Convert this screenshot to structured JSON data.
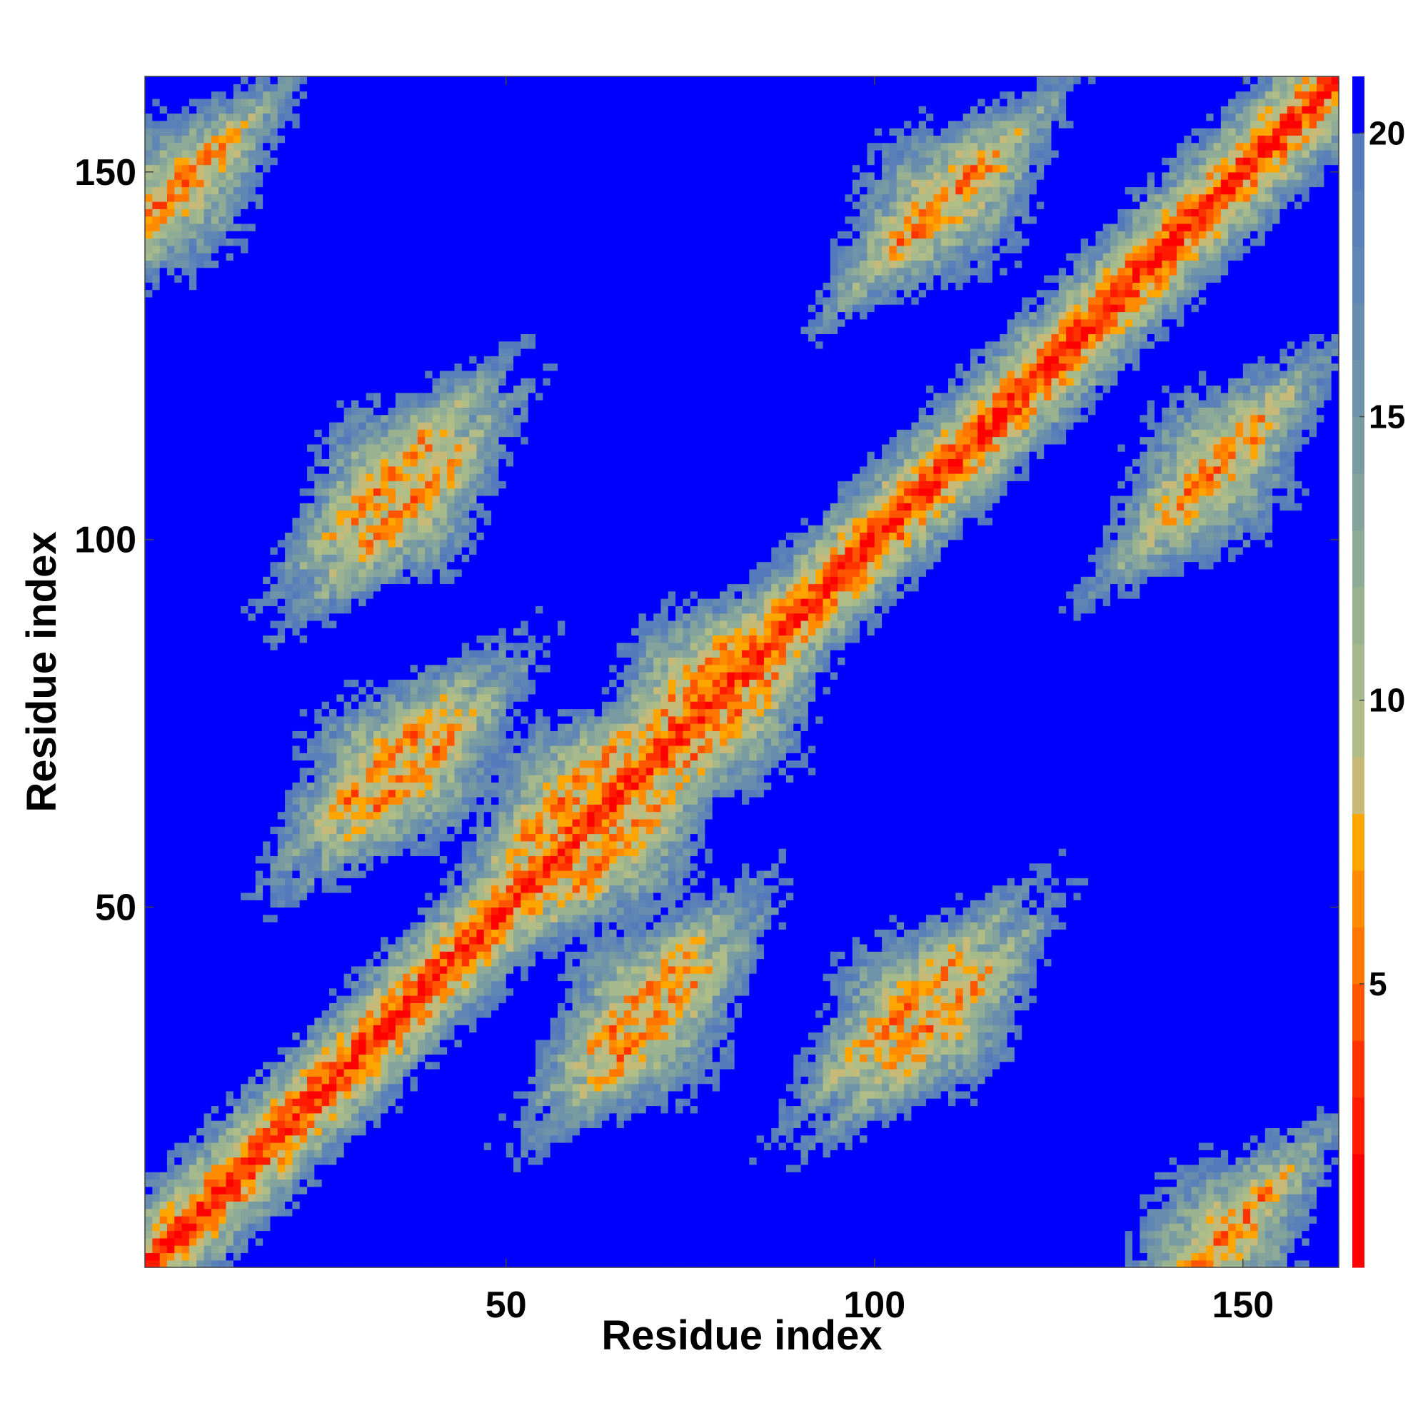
{
  "chart_data": {
    "type": "heatmap",
    "title": "",
    "xlabel": "Residue index",
    "ylabel": "Residue index",
    "n_residues": 162,
    "xlim": [
      1,
      163
    ],
    "ylim": [
      1,
      163
    ],
    "x_ticks": [
      50,
      100,
      150
    ],
    "y_ticks": [
      50,
      100,
      150
    ],
    "x_tick_labels": [
      "50",
      "100",
      "150"
    ],
    "y_tick_labels": [
      "50",
      "100",
      "150"
    ],
    "colorbar": {
      "range": [
        0,
        21
      ],
      "ticks": [
        5,
        10,
        15,
        20
      ],
      "tick_labels": [
        "5",
        "10",
        "15",
        "20"
      ],
      "levels": [
        {
          "max": 2,
          "color": "#ff0000"
        },
        {
          "max": 3,
          "color": "#ff1a00"
        },
        {
          "max": 4,
          "color": "#ff3300"
        },
        {
          "max": 5,
          "color": "#ff5500"
        },
        {
          "max": 6,
          "color": "#ff7700"
        },
        {
          "max": 7,
          "color": "#ff8c00"
        },
        {
          "max": 8,
          "color": "#ffa500"
        },
        {
          "max": 9,
          "color": "#c7b978"
        },
        {
          "max": 10,
          "color": "#b0bd86"
        },
        {
          "max": 11,
          "color": "#a6b98c"
        },
        {
          "max": 12,
          "color": "#9bb290"
        },
        {
          "max": 13,
          "color": "#8eab97"
        },
        {
          "max": 14,
          "color": "#83a39c"
        },
        {
          "max": 15,
          "color": "#789ba2"
        },
        {
          "max": 16,
          "color": "#6f93a8"
        },
        {
          "max": 17,
          "color": "#678cae"
        },
        {
          "max": 18,
          "color": "#5f86b4"
        },
        {
          "max": 19,
          "color": "#5980b8"
        },
        {
          "max": 20,
          "color": "#547abc"
        },
        {
          "max": 21,
          "color": "#0000ff"
        }
      ]
    },
    "description_of_pattern": {
      "diagonal_distance": 2,
      "off_diagonal_contacts": [
        {
          "i": 2,
          "j": 145,
          "distance": 6
        },
        {
          "i": 36,
          "j": 104,
          "distance": 6
        },
        {
          "i": 33,
          "j": 69,
          "distance": 6
        },
        {
          "i": 68,
          "j": 37,
          "distance": 6
        },
        {
          "i": 108,
          "j": 34,
          "distance": 6
        },
        {
          "i": 110,
          "j": 146,
          "distance": 6
        },
        {
          "i": 145,
          "j": 108,
          "distance": 6
        },
        {
          "i": 147,
          "j": 5,
          "distance": 6
        },
        {
          "i": 75,
          "j": 80,
          "distance": 6
        },
        {
          "i": 58,
          "j": 65,
          "distance": 6
        }
      ]
    }
  }
}
